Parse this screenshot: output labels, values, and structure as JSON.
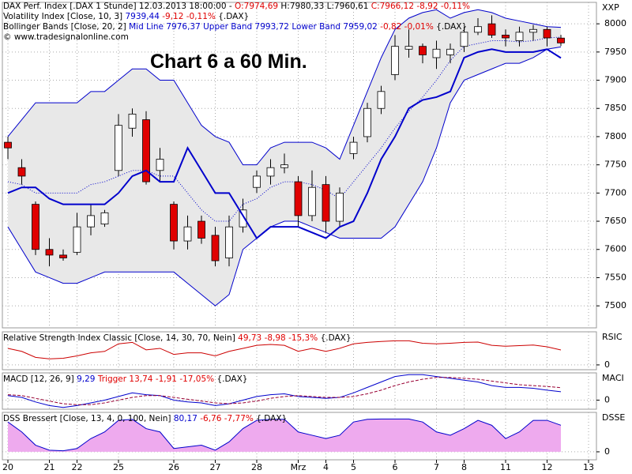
{
  "chart_data": [
    {
      "type": "candlestick",
      "title": "Chart 6 a 60 Min.",
      "axis_label": "XXP",
      "header": {
        "instrument": "DAX Perf. Index [.DAX  1 Stunde] 12.03.2013 18:00:00 -",
        "open": "O:7974,69",
        "high_low": "H:7980,33 L:7960,61",
        "close": "C:7966,12 -8,92 -0,11%",
        "copyright": "© www.tradesignalonline.com"
      },
      "bollinger": {
        "label": "Bollinger Bands [Close, 20, 2]",
        "change": "-0,82 -0,01%",
        "symbol": "{.DAX}"
      },
      "categories": [
        "20",
        null,
        null,
        "21",
        null,
        "22",
        null,
        null,
        "25",
        null,
        null,
        null,
        "26",
        null,
        null,
        "27",
        null,
        null,
        "28",
        null,
        null,
        "Mrz",
        null,
        "4",
        null,
        "5",
        null,
        null,
        "6",
        null,
        null,
        "7",
        null,
        "8",
        null,
        null,
        "11",
        null,
        null,
        "12",
        null,
        null,
        "13"
      ],
      "open": [
        7790,
        7745,
        7680,
        7600,
        7590,
        7595,
        7640,
        7645,
        7740,
        7815,
        7830,
        7740,
        7680,
        7615,
        7650,
        7625,
        7585,
        7640,
        7710,
        7730,
        7745,
        7720,
        7660,
        7715,
        7650,
        7770,
        7800,
        7850,
        7910,
        7955,
        7960,
        7940,
        7945,
        7960,
        7985,
        8000,
        7980,
        7970,
        7985,
        7990,
        7974.69,
        null,
        null
      ],
      "high": [
        7800,
        7760,
        7685,
        7620,
        7600,
        7665,
        7680,
        7670,
        7840,
        7850,
        7845,
        7780,
        7685,
        7660,
        7660,
        7640,
        7660,
        7690,
        7740,
        7760,
        7770,
        7730,
        7740,
        7730,
        7710,
        7800,
        7860,
        7890,
        7980,
        7990,
        7965,
        7970,
        7965,
        7995,
        8010,
        8015,
        7990,
        7995,
        7998,
        7995,
        7980.33,
        null,
        null
      ],
      "low": [
        7760,
        7715,
        7590,
        7570,
        7580,
        7590,
        7625,
        7640,
        7730,
        7800,
        7715,
        7720,
        7600,
        7600,
        7610,
        7570,
        7570,
        7630,
        7700,
        7715,
        7735,
        7640,
        7650,
        7630,
        7640,
        7760,
        7790,
        7840,
        7900,
        7940,
        7930,
        7920,
        7930,
        7950,
        7980,
        7975,
        7960,
        7960,
        7970,
        7960,
        7960.61,
        null,
        null
      ],
      "close": [
        7780,
        7730,
        7600,
        7590,
        7585,
        7640,
        7660,
        7665,
        7820,
        7840,
        7720,
        7760,
        7615,
        7640,
        7620,
        7580,
        7640,
        7670,
        7730,
        7745,
        7750,
        7660,
        7710,
        7650,
        7700,
        7790,
        7850,
        7880,
        7960,
        7960,
        7945,
        7955,
        7955,
        7985,
        7995,
        7980,
        7975,
        7985,
        7990,
        7975,
        7966.12,
        null,
        null
      ],
      "up_color": "#ffffff",
      "down_color": "#e00000",
      "band_fill": "#e8e8e8",
      "series": [
        {
          "name": "Volatility Index [Close, 10, 3]",
          "last_label": "7939,44",
          "change": "-9,12 -0,11%",
          "symbol": "{.DAX}",
          "color": "#0000cc",
          "width": 2,
          "values": [
            7700,
            7710,
            7710,
            7690,
            7680,
            7680,
            7680,
            7680,
            7700,
            7730,
            7740,
            7720,
            7720,
            7780,
            7740,
            7700,
            7700,
            7660,
            7620,
            7640,
            7640,
            7640,
            7630,
            7620,
            7640,
            7650,
            7700,
            7760,
            7800,
            7850,
            7865,
            7870,
            7880,
            7940,
            7950,
            7955,
            7950,
            7950,
            7950,
            7955,
            7939.44,
            null,
            null
          ]
        },
        {
          "name": "Mid Line",
          "last_label": "7976,37",
          "color": "#0000cc",
          "width": 1,
          "dash": "dotted",
          "values": [
            7720,
            7715,
            7700,
            7700,
            7700,
            7700,
            7715,
            7720,
            7730,
            7740,
            7740,
            7730,
            7730,
            7700,
            7670,
            7650,
            7650,
            7680,
            7690,
            7710,
            7720,
            7720,
            7715,
            7705,
            7690,
            7720,
            7750,
            7780,
            7815,
            7845,
            7870,
            7900,
            7935,
            7960,
            7965,
            7970,
            7970,
            7968,
            7970,
            7975,
            7976.37,
            null,
            null
          ]
        },
        {
          "name": "Upper Band",
          "last_label": "7993,72",
          "color": "#0000cc",
          "width": 1,
          "values": [
            7800,
            7830,
            7860,
            7860,
            7860,
            7860,
            7880,
            7880,
            7900,
            7920,
            7920,
            7900,
            7900,
            7860,
            7820,
            7800,
            7790,
            7750,
            7750,
            7780,
            7790,
            7790,
            7790,
            7780,
            7760,
            7820,
            7880,
            7940,
            7990,
            8010,
            8020,
            8025,
            8010,
            8020,
            8025,
            8020,
            8010,
            8005,
            8000,
            7995,
            7993.72,
            null,
            null
          ]
        },
        {
          "name": "Lower Band",
          "last_label": "7959,02",
          "color": "#0000cc",
          "width": 1,
          "values": [
            7640,
            7600,
            7560,
            7550,
            7540,
            7540,
            7550,
            7560,
            7560,
            7560,
            7560,
            7560,
            7560,
            7540,
            7520,
            7500,
            7520,
            7600,
            7620,
            7640,
            7650,
            7650,
            7640,
            7630,
            7620,
            7620,
            7620,
            7620,
            7640,
            7680,
            7720,
            7780,
            7860,
            7900,
            7910,
            7920,
            7930,
            7930,
            7940,
            7955,
            7959.02,
            null,
            null
          ]
        }
      ],
      "ylim": [
        7461,
        8038
      ],
      "yticks": [
        7500,
        7550,
        7600,
        7650,
        7700,
        7750,
        7800,
        7850,
        7900,
        7950,
        8000
      ],
      "grid": true
    },
    {
      "type": "line",
      "axis_label": "RSIC",
      "series": [
        {
          "name": "Relative Strength Index Classic [Close, 14, 30, 70, Nein]",
          "last_label": "49,73",
          "change": "-8,98 -15,3%",
          "symbol": "{.DAX}",
          "color": "#cc0000",
          "width": 1,
          "values": [
            55,
            45,
            25,
            20,
            22,
            30,
            40,
            45,
            70,
            75,
            50,
            55,
            35,
            40,
            40,
            30,
            45,
            55,
            65,
            68,
            65,
            45,
            55,
            45,
            55,
            70,
            75,
            78,
            80,
            80,
            72,
            70,
            72,
            75,
            76,
            65,
            62,
            64,
            66,
            60,
            49.73,
            null,
            null
          ]
        }
      ],
      "ylim": [
        -16,
        110
      ],
      "yticks": [
        0
      ],
      "grid": true
    },
    {
      "type": "line",
      "axis_label": "MACI",
      "series": [
        {
          "name": "MACD [12, 26, 9]",
          "last_label": "9,29",
          "color": "#0000cc",
          "width": 1,
          "values": [
            5,
            3,
            -2,
            -6,
            -8,
            -6,
            -3,
            0,
            4,
            8,
            6,
            5,
            0,
            -2,
            -3,
            -6,
            -4,
            0,
            4,
            6,
            7,
            4,
            3,
            2,
            3,
            8,
            14,
            20,
            26,
            28,
            28,
            26,
            24,
            22,
            20,
            16,
            14,
            14,
            13,
            11,
            9.29,
            null,
            null
          ]
        },
        {
          "name": "Trigger",
          "last_label": "13,74",
          "change": "-1,91 -17,05%",
          "symbol": "{.DAX}",
          "color": "#990033",
          "width": 1,
          "dash": "dashed",
          "values": [
            6,
            5,
            2,
            -1,
            -4,
            -5,
            -5,
            -3,
            0,
            3,
            5,
            5,
            3,
            1,
            -1,
            -3,
            -4,
            -3,
            -1,
            2,
            4,
            5,
            4,
            3,
            3,
            4,
            7,
            11,
            16,
            20,
            23,
            25,
            25,
            24,
            23,
            21,
            19,
            17,
            16,
            15,
            13.74,
            null,
            null
          ]
        }
      ],
      "ylim": [
        -10,
        30
      ],
      "yticks": [
        0
      ],
      "grid": true
    },
    {
      "type": "area",
      "axis_label": "DSSE",
      "fill": "#eeaaee",
      "series": [
        {
          "name": "DSS Bressert [Close, 13, 4, 0, 100, Nein]",
          "last_label": "80,17",
          "change": "-6,76 -7,77%",
          "symbol": "{.DAX}",
          "color": "#0000cc",
          "width": 1,
          "values": [
            90,
            60,
            20,
            5,
            3,
            10,
            40,
            60,
            95,
            98,
            70,
            60,
            10,
            15,
            20,
            5,
            30,
            70,
            95,
            98,
            98,
            60,
            50,
            40,
            50,
            90,
            98,
            99,
            99,
            99,
            90,
            60,
            50,
            70,
            95,
            80,
            40,
            60,
            95,
            95,
            80.17,
            null,
            null
          ]
        }
      ],
      "ylim": [
        -24,
        119
      ],
      "yticks": [
        0
      ],
      "grid": true
    }
  ]
}
